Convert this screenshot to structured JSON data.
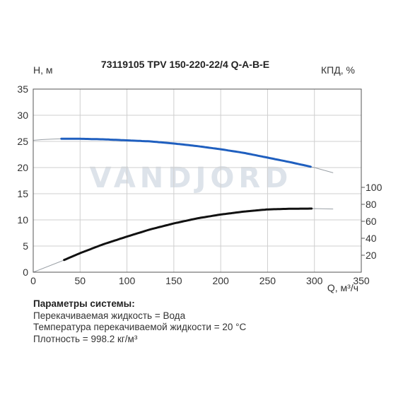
{
  "chart_data": {
    "type": "line",
    "title": "73119105 TPV 150-220-22/4 Q-A-B-E",
    "ylabel_left": "H, м",
    "ylabel_right": "КПД, %",
    "xlabel": "Q, м³/ч",
    "xlim": [
      0,
      350
    ],
    "ylim_left": [
      0,
      35
    ],
    "xticks": [
      0,
      50,
      100,
      150,
      200,
      250,
      300,
      350
    ],
    "yticks_left": [
      0,
      5,
      10,
      15,
      20,
      25,
      30,
      35
    ],
    "yticks_right": [
      20,
      40,
      60,
      80,
      100
    ],
    "grid": true,
    "watermark": "VANDJORD",
    "series": [
      {
        "axis": "left",
        "color": "#1f5fbf",
        "x": [
          0,
          10,
          20,
          30,
          50,
          75,
          100,
          125,
          150,
          175,
          200,
          225,
          250,
          275,
          300,
          320
        ],
        "y": [
          25.2,
          25.35,
          25.45,
          25.5,
          25.5,
          25.4,
          25.2,
          25.0,
          24.6,
          24.1,
          23.5,
          22.8,
          21.9,
          21.0,
          20.0,
          19.0
        ],
        "operating_range": [
          30,
          297
        ]
      },
      {
        "axis": "right",
        "color": "#111111",
        "x": [
          0,
          30,
          50,
          75,
          100,
          125,
          150,
          175,
          200,
          225,
          250,
          275,
          300,
          320
        ],
        "y": [
          0,
          13,
          22.5,
          33,
          42,
          50.5,
          57.5,
          63.5,
          68,
          71.5,
          74,
          74.8,
          75,
          74.5
        ],
        "operating_range": [
          33,
          297
        ]
      }
    ]
  },
  "params": {
    "heading": "Параметры системы:",
    "lines": [
      "Перекачиваемая жидкость = Вода",
      "Температура перекачиваемой жидкости = 20 °C",
      "Плотность = 998.2 кг/м³"
    ]
  }
}
